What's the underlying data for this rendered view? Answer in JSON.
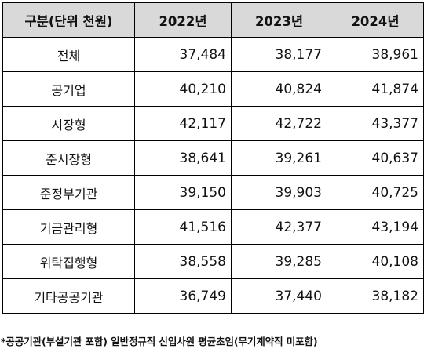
{
  "table": {
    "headers": [
      "구분(단위 천원)",
      "2022년",
      "2023년",
      "2024년"
    ],
    "rows": [
      {
        "label": "전체",
        "values": [
          "37,484",
          "38,177",
          "38,961"
        ]
      },
      {
        "label": "공기업",
        "values": [
          "40,210",
          "40,824",
          "41,874"
        ]
      },
      {
        "label": "시장형",
        "values": [
          "42,117",
          "42,722",
          "43,377"
        ]
      },
      {
        "label": "준시장형",
        "values": [
          "38,641",
          "39,261",
          "40,637"
        ]
      },
      {
        "label": "준정부기관",
        "values": [
          "39,150",
          "39,903",
          "40,725"
        ]
      },
      {
        "label": "기금관리형",
        "values": [
          "41,516",
          "42,377",
          "43,194"
        ]
      },
      {
        "label": "위탁집행형",
        "values": [
          "38,558",
          "39,285",
          "40,108"
        ]
      },
      {
        "label": "기타공공기관",
        "values": [
          "36,749",
          "37,440",
          "38,182"
        ]
      }
    ]
  },
  "footnote": "*공공기관(부설기관 포함) 일반정규직 신입사원 평균초임(무기계약직 미포함)",
  "colors": {
    "header_bg": "#d9d9d9",
    "border": "#000000",
    "text": "#111111"
  }
}
